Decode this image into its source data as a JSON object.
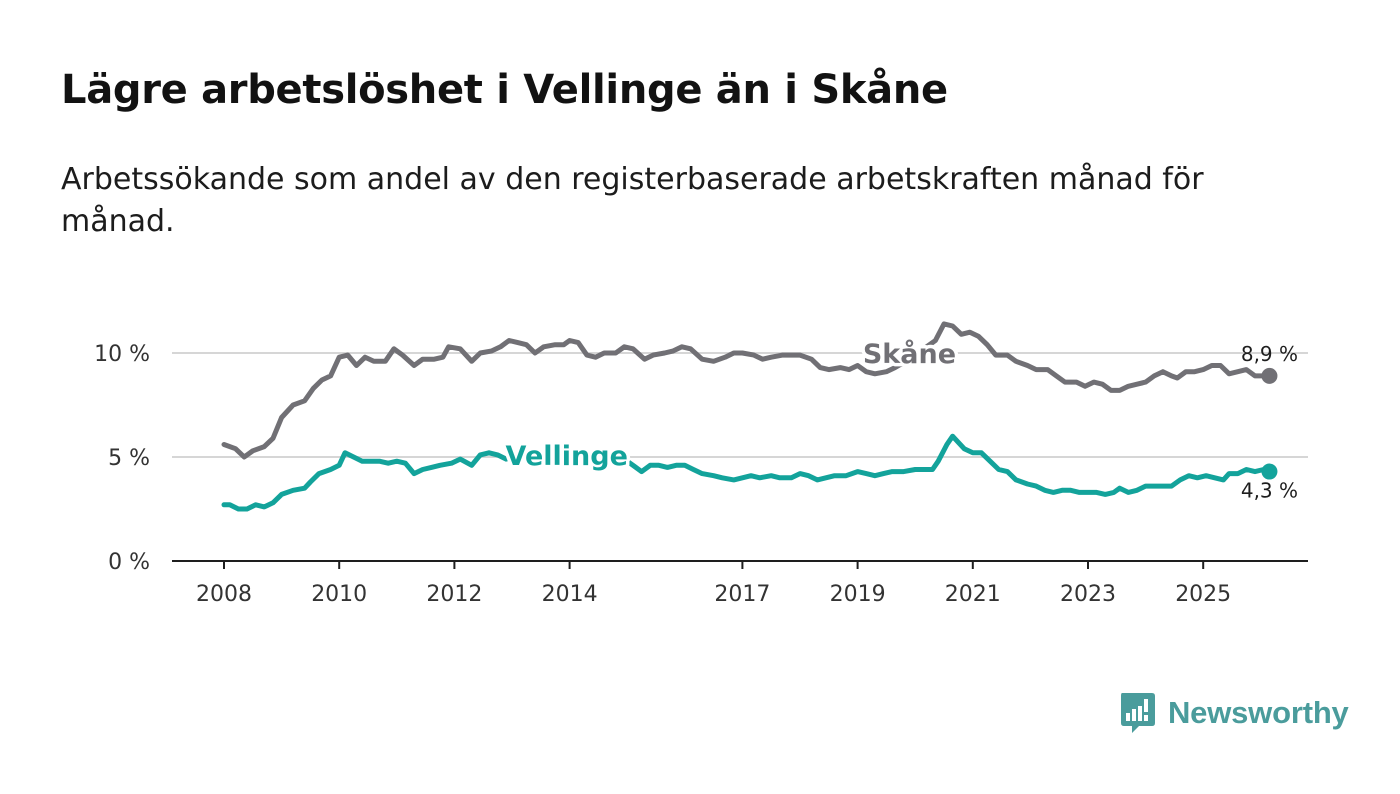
{
  "title": "Lägre arbetslöshet i Vellinge än i Skåne",
  "subtitle": "Arbetssökande som andel av den registerbaserade arbetskraften månad för månad.",
  "logo": {
    "text": "Newsworthy",
    "icon": "newsworthy-bar-chart-icon",
    "color": "#4a9c9c"
  },
  "chart_data": {
    "type": "line",
    "title": "Lägre arbetslöshet i Vellinge än i Skåne",
    "xlabel": "",
    "ylabel": "",
    "x_unit": "year",
    "xlim": [
      2007.7,
      2026.5
    ],
    "ylim": [
      0,
      12
    ],
    "x_ticks": [
      {
        "value": 2008,
        "label": "2008"
      },
      {
        "value": 2010,
        "label": "2010"
      },
      {
        "value": 2012,
        "label": "2012"
      },
      {
        "value": 2014,
        "label": "2014"
      },
      {
        "value": 2017,
        "label": "2017"
      },
      {
        "value": 2019,
        "label": "2019"
      },
      {
        "value": 2021,
        "label": "2021"
      },
      {
        "value": 2023,
        "label": "2023"
      },
      {
        "value": 2025,
        "label": "2025"
      }
    ],
    "y_ticks": [
      {
        "value": 0,
        "label": "0 %"
      },
      {
        "value": 5,
        "label": "5 %"
      },
      {
        "value": 10,
        "label": "10 %"
      }
    ],
    "grid": true,
    "series": [
      {
        "name": "Skåne",
        "color": "#717075",
        "end_label": "8,9 %",
        "end_value": 8.9,
        "label_anchor": [
          2019.9,
          10.0
        ],
        "points": [
          [
            2008.0,
            5.6
          ],
          [
            2008.2,
            5.4
          ],
          [
            2008.35,
            5.0
          ],
          [
            2008.5,
            5.3
          ],
          [
            2008.7,
            5.5
          ],
          [
            2008.85,
            5.9
          ],
          [
            2009.0,
            6.9
          ],
          [
            2009.2,
            7.5
          ],
          [
            2009.4,
            7.7
          ],
          [
            2009.55,
            8.3
          ],
          [
            2009.7,
            8.7
          ],
          [
            2009.85,
            8.9
          ],
          [
            2010.0,
            9.8
          ],
          [
            2010.15,
            9.9
          ],
          [
            2010.3,
            9.4
          ],
          [
            2010.45,
            9.8
          ],
          [
            2010.6,
            9.6
          ],
          [
            2010.8,
            9.6
          ],
          [
            2010.95,
            10.2
          ],
          [
            2011.1,
            9.9
          ],
          [
            2011.3,
            9.4
          ],
          [
            2011.45,
            9.7
          ],
          [
            2011.65,
            9.7
          ],
          [
            2011.8,
            9.8
          ],
          [
            2011.9,
            10.3
          ],
          [
            2012.1,
            10.2
          ],
          [
            2012.3,
            9.6
          ],
          [
            2012.45,
            10.0
          ],
          [
            2012.65,
            10.1
          ],
          [
            2012.8,
            10.3
          ],
          [
            2012.95,
            10.6
          ],
          [
            2013.1,
            10.5
          ],
          [
            2013.25,
            10.4
          ],
          [
            2013.4,
            10.0
          ],
          [
            2013.55,
            10.3
          ],
          [
            2013.75,
            10.4
          ],
          [
            2013.9,
            10.4
          ],
          [
            2014.0,
            10.6
          ],
          [
            2014.15,
            10.5
          ],
          [
            2014.3,
            9.9
          ],
          [
            2014.45,
            9.8
          ],
          [
            2014.6,
            10.0
          ],
          [
            2014.8,
            10.0
          ],
          [
            2014.95,
            10.3
          ],
          [
            2015.1,
            10.2
          ],
          [
            2015.3,
            9.7
          ],
          [
            2015.45,
            9.9
          ],
          [
            2015.65,
            10.0
          ],
          [
            2015.8,
            10.1
          ],
          [
            2015.95,
            10.3
          ],
          [
            2016.1,
            10.2
          ],
          [
            2016.3,
            9.7
          ],
          [
            2016.5,
            9.6
          ],
          [
            2016.7,
            9.8
          ],
          [
            2016.85,
            10.0
          ],
          [
            2017.0,
            10.0
          ],
          [
            2017.2,
            9.9
          ],
          [
            2017.35,
            9.7
          ],
          [
            2017.5,
            9.8
          ],
          [
            2017.7,
            9.9
          ],
          [
            2017.85,
            9.9
          ],
          [
            2018.0,
            9.9
          ],
          [
            2018.2,
            9.7
          ],
          [
            2018.35,
            9.3
          ],
          [
            2018.5,
            9.2
          ],
          [
            2018.7,
            9.3
          ],
          [
            2018.85,
            9.2
          ],
          [
            2019.0,
            9.4
          ],
          [
            2019.15,
            9.1
          ],
          [
            2019.3,
            9.0
          ],
          [
            2019.5,
            9.1
          ],
          [
            2019.65,
            9.3
          ],
          [
            2019.9,
            9.7
          ],
          [
            2020.15,
            10.2
          ],
          [
            2020.35,
            10.6
          ],
          [
            2020.5,
            11.4
          ],
          [
            2020.65,
            11.3
          ],
          [
            2020.8,
            10.9
          ],
          [
            2020.95,
            11.0
          ],
          [
            2021.1,
            10.8
          ],
          [
            2021.25,
            10.4
          ],
          [
            2021.4,
            9.9
          ],
          [
            2021.6,
            9.9
          ],
          [
            2021.75,
            9.6
          ],
          [
            2021.95,
            9.4
          ],
          [
            2022.1,
            9.2
          ],
          [
            2022.3,
            9.2
          ],
          [
            2022.45,
            8.9
          ],
          [
            2022.6,
            8.6
          ],
          [
            2022.8,
            8.6
          ],
          [
            2022.95,
            8.4
          ],
          [
            2023.1,
            8.6
          ],
          [
            2023.25,
            8.5
          ],
          [
            2023.4,
            8.2
          ],
          [
            2023.55,
            8.2
          ],
          [
            2023.7,
            8.4
          ],
          [
            2023.85,
            8.5
          ],
          [
            2024.0,
            8.6
          ],
          [
            2024.15,
            8.9
          ],
          [
            2024.3,
            9.1
          ],
          [
            2024.45,
            8.9
          ],
          [
            2024.55,
            8.8
          ],
          [
            2024.7,
            9.1
          ],
          [
            2024.85,
            9.1
          ],
          [
            2025.0,
            9.2
          ],
          [
            2025.15,
            9.4
          ],
          [
            2025.3,
            9.4
          ],
          [
            2025.45,
            9.0
          ],
          [
            2025.6,
            9.1
          ],
          [
            2025.75,
            9.2
          ],
          [
            2025.9,
            8.9
          ],
          [
            2026.05,
            8.9
          ],
          [
            2026.15,
            8.9
          ]
        ]
      },
      {
        "name": "Vellinge",
        "color": "#13a39b",
        "end_label": "4,3 %",
        "end_value": 4.3,
        "label_anchor": [
          2013.95,
          5.1
        ],
        "points": [
          [
            2008.0,
            2.7
          ],
          [
            2008.1,
            2.7
          ],
          [
            2008.25,
            2.5
          ],
          [
            2008.4,
            2.5
          ],
          [
            2008.55,
            2.7
          ],
          [
            2008.7,
            2.6
          ],
          [
            2008.85,
            2.8
          ],
          [
            2009.0,
            3.2
          ],
          [
            2009.2,
            3.4
          ],
          [
            2009.4,
            3.5
          ],
          [
            2009.5,
            3.8
          ],
          [
            2009.65,
            4.2
          ],
          [
            2009.85,
            4.4
          ],
          [
            2010.0,
            4.6
          ],
          [
            2010.1,
            5.2
          ],
          [
            2010.25,
            5.0
          ],
          [
            2010.4,
            4.8
          ],
          [
            2010.55,
            4.8
          ],
          [
            2010.7,
            4.8
          ],
          [
            2010.85,
            4.7
          ],
          [
            2011.0,
            4.8
          ],
          [
            2011.15,
            4.7
          ],
          [
            2011.3,
            4.2
          ],
          [
            2011.45,
            4.4
          ],
          [
            2011.6,
            4.5
          ],
          [
            2011.75,
            4.6
          ],
          [
            2011.95,
            4.7
          ],
          [
            2012.1,
            4.9
          ],
          [
            2012.3,
            4.6
          ],
          [
            2012.45,
            5.1
          ],
          [
            2012.6,
            5.2
          ],
          [
            2012.75,
            5.1
          ],
          [
            2012.9,
            4.9
          ],
          [
            2013.05,
            5.0
          ],
          [
            2013.2,
            4.9
          ],
          [
            2013.35,
            4.8
          ],
          [
            2013.5,
            4.9
          ],
          [
            2013.65,
            4.8
          ],
          [
            2013.8,
            4.8
          ],
          [
            2014.0,
            4.9
          ],
          [
            2014.15,
            5.0
          ],
          [
            2014.3,
            4.8
          ],
          [
            2014.45,
            4.7
          ],
          [
            2014.6,
            4.8
          ],
          [
            2014.75,
            4.8
          ],
          [
            2014.95,
            4.9
          ],
          [
            2015.1,
            4.6
          ],
          [
            2015.25,
            4.3
          ],
          [
            2015.4,
            4.6
          ],
          [
            2015.55,
            4.6
          ],
          [
            2015.7,
            4.5
          ],
          [
            2015.85,
            4.6
          ],
          [
            2016.0,
            4.6
          ],
          [
            2016.15,
            4.4
          ],
          [
            2016.3,
            4.2
          ],
          [
            2016.5,
            4.1
          ],
          [
            2016.65,
            4.0
          ],
          [
            2016.85,
            3.9
          ],
          [
            2017.0,
            4.0
          ],
          [
            2017.15,
            4.1
          ],
          [
            2017.3,
            4.0
          ],
          [
            2017.5,
            4.1
          ],
          [
            2017.65,
            4.0
          ],
          [
            2017.85,
            4.0
          ],
          [
            2018.0,
            4.2
          ],
          [
            2018.15,
            4.1
          ],
          [
            2018.3,
            3.9
          ],
          [
            2018.45,
            4.0
          ],
          [
            2018.6,
            4.1
          ],
          [
            2018.8,
            4.1
          ],
          [
            2019.0,
            4.3
          ],
          [
            2019.15,
            4.2
          ],
          [
            2019.3,
            4.1
          ],
          [
            2019.45,
            4.2
          ],
          [
            2019.6,
            4.3
          ],
          [
            2019.8,
            4.3
          ],
          [
            2020.0,
            4.4
          ],
          [
            2020.15,
            4.4
          ],
          [
            2020.3,
            4.4
          ],
          [
            2020.4,
            4.8
          ],
          [
            2020.55,
            5.6
          ],
          [
            2020.65,
            6.0
          ],
          [
            2020.75,
            5.7
          ],
          [
            2020.85,
            5.4
          ],
          [
            2021.0,
            5.2
          ],
          [
            2021.15,
            5.2
          ],
          [
            2021.3,
            4.8
          ],
          [
            2021.45,
            4.4
          ],
          [
            2021.6,
            4.3
          ],
          [
            2021.75,
            3.9
          ],
          [
            2021.95,
            3.7
          ],
          [
            2022.1,
            3.6
          ],
          [
            2022.25,
            3.4
          ],
          [
            2022.4,
            3.3
          ],
          [
            2022.55,
            3.4
          ],
          [
            2022.7,
            3.4
          ],
          [
            2022.85,
            3.3
          ],
          [
            2023.0,
            3.3
          ],
          [
            2023.15,
            3.3
          ],
          [
            2023.3,
            3.2
          ],
          [
            2023.45,
            3.3
          ],
          [
            2023.55,
            3.5
          ],
          [
            2023.7,
            3.3
          ],
          [
            2023.85,
            3.4
          ],
          [
            2024.0,
            3.6
          ],
          [
            2024.15,
            3.6
          ],
          [
            2024.3,
            3.6
          ],
          [
            2024.45,
            3.6
          ],
          [
            2024.6,
            3.9
          ],
          [
            2024.75,
            4.1
          ],
          [
            2024.9,
            4.0
          ],
          [
            2025.05,
            4.1
          ],
          [
            2025.2,
            4.0
          ],
          [
            2025.35,
            3.9
          ],
          [
            2025.45,
            4.2
          ],
          [
            2025.6,
            4.2
          ],
          [
            2025.75,
            4.4
          ],
          [
            2025.9,
            4.3
          ],
          [
            2026.05,
            4.4
          ],
          [
            2026.15,
            4.3
          ]
        ]
      }
    ]
  }
}
